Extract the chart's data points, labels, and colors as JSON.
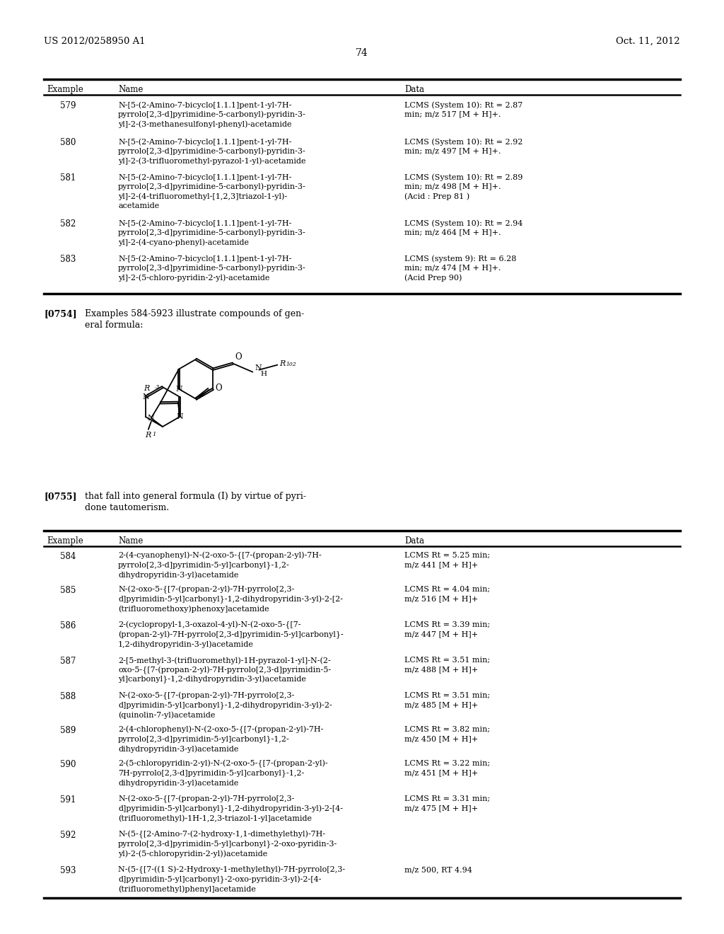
{
  "bg_color": "#ffffff",
  "header_left": "US 2012/0258950 A1",
  "header_right": "Oct. 11, 2012",
  "page_number": "74",
  "table1_rows": [
    [
      "579",
      "N-[5-(2-Amino-7-bicyclo[1.1.1]pent-1-yl-7H-\npyrrolo[2,3-d]pyrimidine-5-carbonyl)-pyridin-3-\nyl]-2-(3-methanesulfonyl-phenyl)-acetamide",
      "LCMS (System 10): Rt = 2.87\nmin; m/z 517 [M + H]+."
    ],
    [
      "580",
      "N-[5-(2-Amino-7-bicyclo[1.1.1]pent-1-yl-7H-\npyrrolo[2,3-d]pyrimidine-5-carbonyl)-pyridin-3-\nyl]-2-(3-trifluoromethyl-pyrazol-1-yl)-acetamide",
      "LCMS (System 10): Rt = 2.92\nmin; m/z 497 [M + H]+."
    ],
    [
      "581",
      "N-[5-(2-Amino-7-bicyclo[1.1.1]pent-1-yl-7H-\npyrrolo[2,3-d]pyrimidine-5-carbonyl)-pyridin-3-\nyl]-2-(4-trifluoromethyl-[1,2,3]triazol-1-yl)-\nacetamide",
      "LCMS (System 10): Rt = 2.89\nmin; m/z 498 [M + H]+.\n(Acid : Prep 81 )"
    ],
    [
      "582",
      "N-[5-(2-Amino-7-bicyclo[1.1.1]pent-1-yl-7H-\npyrrolo[2,3-d]pyrimidine-5-carbonyl)-pyridin-3-\nyl]-2-(4-cyano-phenyl)-acetamide",
      "LCMS (System 10): Rt = 2.94\nmin; m/z 464 [M + H]+."
    ],
    [
      "583",
      "N-[5-(2-Amino-7-bicyclo[1.1.1]pent-1-yl-7H-\npyrrolo[2,3-d]pyrimidine-5-carbonyl)-pyridin-3-\nyl]-2-(5-chloro-pyridin-2-yl)-acetamide",
      "LCMS (system 9): Rt = 6.28\nmin; m/z 474 [M + H]+.\n(Acid Prep 90)"
    ]
  ],
  "table2_rows": [
    [
      "584",
      "2-(4-cyanophenyl)-N-(2-oxo-5-{[7-(propan-2-yl)-7H-\npyrrolo[2,3-d]pyrimidin-5-yl]carbonyl}-1,2-\ndihydropyridin-3-yl)acetamide",
      "LCMS Rt = 5.25 min;\nm/z 441 [M + H]+"
    ],
    [
      "585",
      "N-(2-oxo-5-{[7-(propan-2-yl)-7H-pyrrolo[2,3-\nd]pyrimidin-5-yl]carbonyl}-1,2-dihydropyridin-3-yl)-2-[2-\n(trifluoromethoxy)phenoxy]acetamide",
      "LCMS Rt = 4.04 min;\nm/z 516 [M + H]+"
    ],
    [
      "586",
      "2-(cyclopropyl-1,3-oxazol-4-yl)-N-(2-oxo-5-{[7-\n(propan-2-yl)-7H-pyrrolo[2,3-d]pyrimidin-5-yl]carbonyl}-\n1,2-dihydropyridin-3-yl)acetamide",
      "LCMS Rt = 3.39 min;\nm/z 447 [M + H]+"
    ],
    [
      "587",
      "2-[5-methyl-3-(trifluoromethyl)-1H-pyrazol-1-yl]-N-(2-\noxo-5-{[7-(propan-2-yl)-7H-pyrrolo[2,3-d]pyrimidin-5-\nyl]carbonyl}-1,2-dihydropyridin-3-yl)acetamide",
      "LCMS Rt = 3.51 min;\nm/z 488 [M + H]+"
    ],
    [
      "588",
      "N-(2-oxo-5-{[7-(propan-2-yl)-7H-pyrrolo[2,3-\nd]pyrimidin-5-yl]carbonyl}-1,2-dihydropyridin-3-yl)-2-\n(quinolin-7-yl)acetamide",
      "LCMS Rt = 3.51 min;\nm/z 485 [M + H]+"
    ],
    [
      "589",
      "2-(4-chlorophenyl)-N-(2-oxo-5-{[7-(propan-2-yl)-7H-\npyrrolo[2,3-d]pyrimidin-5-yl]carbonyl}-1,2-\ndihydropyridin-3-yl)acetamide",
      "LCMS Rt = 3.82 min;\nm/z 450 [M + H]+"
    ],
    [
      "590",
      "2-(5-chloropyridin-2-yl)-N-(2-oxo-5-{[7-(propan-2-yl)-\n7H-pyrrolo[2,3-d]pyrimidin-5-yl]carbonyl}-1,2-\ndihydropyridin-3-yl)acetamide",
      "LCMS Rt = 3.22 min;\nm/z 451 [M + H]+"
    ],
    [
      "591",
      "N-(2-oxo-5-{[7-(propan-2-yl)-7H-pyrrolo[2,3-\nd]pyrimidin-5-yl]carbonyl}-1,2-dihydropyridin-3-yl)-2-[4-\n(trifluoromethyl)-1H-1,2,3-triazol-1-yl]acetamide",
      "LCMS Rt = 3.31 min;\nm/z 475 [M + H]+"
    ],
    [
      "592",
      "N-(5-{[2-Amino-7-(2-hydroxy-1,1-dimethylethyl)-7H-\npyrrolo[2,3-d]pyrimidin-5-yl]carbonyl}-2-oxo-pyridin-3-\nyl)-2-(5-chloropyridin-2-yl))acetamide",
      ""
    ],
    [
      "593",
      "N-(5-{[7-((1 S)-2-Hydroxy-1-methylethyl)-7H-pyrrolo[2,3-\nd]pyrimidin-5-yl]carbonyl}-2-oxo-pyridin-3-yl)-2-[4-\n(trifluoromethyl)phenyl]acetamide",
      "m/z 500, RT 4.94"
    ]
  ]
}
